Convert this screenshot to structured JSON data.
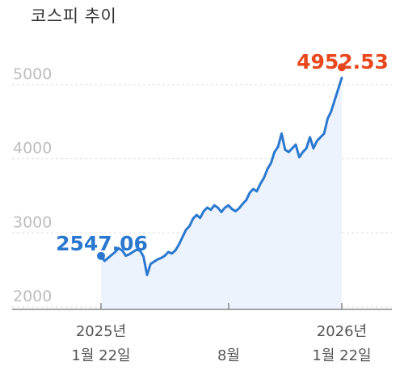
{
  "chart_data": {
    "type": "area",
    "title": "코스피 추이",
    "series": [
      {
        "values": [
          2547.06,
          2480,
          2520,
          2560,
          2600,
          2650,
          2620,
          2550,
          2570,
          2600,
          2630,
          2620,
          2540,
          2290,
          2440,
          2470,
          2500,
          2520,
          2550,
          2600,
          2580,
          2620,
          2700,
          2800,
          2900,
          2950,
          3050,
          3100,
          3060,
          3150,
          3200,
          3170,
          3230,
          3200,
          3140,
          3200,
          3230,
          3180,
          3150,
          3190,
          3250,
          3300,
          3400,
          3450,
          3420,
          3520,
          3600,
          3720,
          3800,
          3950,
          4020,
          4200,
          3980,
          3950,
          4000,
          4050,
          3880,
          3950,
          4000,
          4150,
          4000,
          4100,
          4150,
          4200,
          4400,
          4500,
          4650,
          4800,
          4952.53
        ]
      }
    ],
    "annotations": {
      "start_value": "2547.06",
      "end_value": "4952.53"
    },
    "y_ticks": [
      "5000",
      "4000",
      "3000",
      "2000"
    ],
    "x_ticks": [
      {
        "line1": "2025년",
        "line2": "1월 22일"
      },
      {
        "line1": "",
        "line2": "8월"
      },
      {
        "line1": "2026년",
        "line2": "1월 22일"
      }
    ],
    "ylim": [
      1850,
      5200
    ],
    "grid": true,
    "colors": {
      "line": "#2a78d0",
      "area": "#edf3fc",
      "start_marker": "#2a78d0",
      "end_marker": "#e8471d"
    }
  }
}
